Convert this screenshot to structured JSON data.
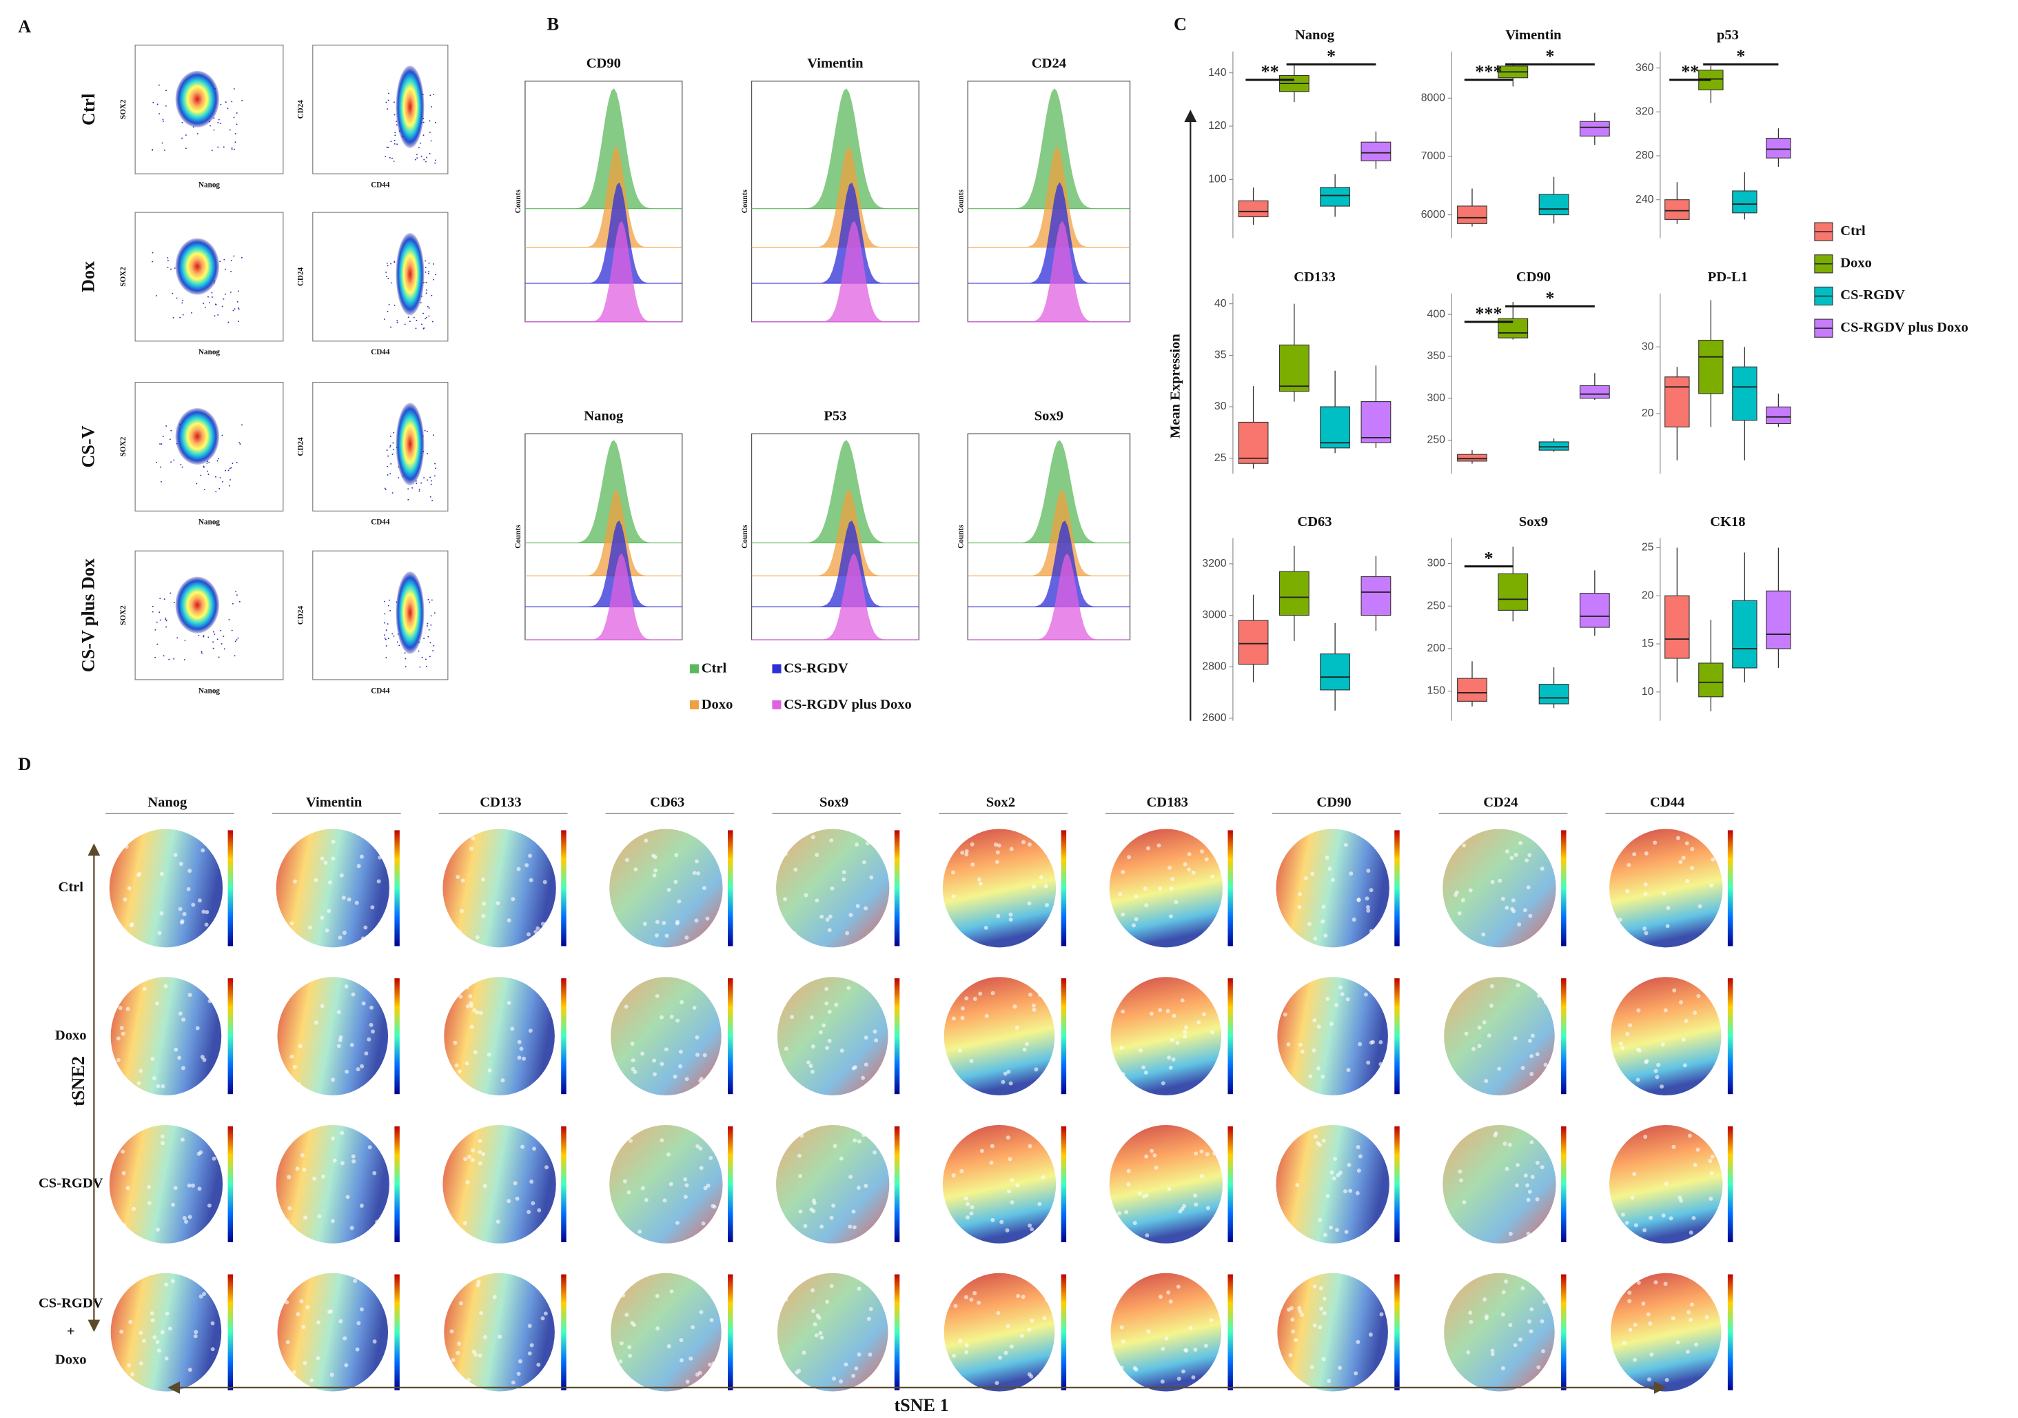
{
  "panel_a": {
    "label": "A",
    "rows": [
      "Ctrl",
      "Dox",
      "CS-V",
      "CS-V plus Dox"
    ],
    "plots": [
      {
        "x_label": "Nanog",
        "y_label": "SOX2"
      },
      {
        "x_label": "CD44",
        "y_label": "CD24"
      }
    ]
  },
  "panel_b": {
    "label": "B",
    "markers": [
      "CD90",
      "Vimentin",
      "CD24",
      "Nanog",
      "P53",
      "Sox9"
    ],
    "y_label": "Counts",
    "legend": [
      {
        "name": "Ctrl",
        "color": "#5cb85c"
      },
      {
        "name": "Doxo",
        "color": "#f0a040"
      },
      {
        "name": "CS-RGDV",
        "color": "#2f2fd8"
      },
      {
        "name": "CS-RGDV  plus Doxo",
        "color": "#e060e0"
      }
    ]
  },
  "panel_c": {
    "label": "C",
    "y_label": "Mean Expression",
    "legend": [
      {
        "name": "Ctrl",
        "color": "#f8766d"
      },
      {
        "name": "Doxo",
        "color": "#7cae00"
      },
      {
        "name": "CS-RGDV",
        "color": "#00bfc4"
      },
      {
        "name": "CS-RGDV  plus Doxo",
        "color": "#c77cff"
      }
    ]
  },
  "chart_data": [
    {
      "type": "box",
      "title": "Nanog",
      "ylim": [
        78,
        148
      ],
      "yticks": [
        100,
        120,
        140
      ],
      "boxes": [
        [
          83,
          86,
          88,
          92,
          97
        ],
        [
          129,
          133,
          136,
          139,
          143
        ],
        [
          86,
          90,
          94,
          97,
          102
        ],
        [
          104,
          107,
          110,
          114,
          118
        ]
      ],
      "annotations": [
        {
          "text": "**",
          "between": [
            "Ctrl",
            "Doxo"
          ]
        },
        {
          "text": "*",
          "between": [
            "Doxo",
            "CS-RGDV  plus Doxo"
          ]
        }
      ]
    },
    {
      "type": "box",
      "title": "Vimentin",
      "ylim": [
        5600,
        8800
      ],
      "yticks": [
        6000,
        7000,
        8000
      ],
      "boxes": [
        [
          5800,
          5850,
          5950,
          6150,
          6450
        ],
        [
          8200,
          8350,
          8450,
          8550,
          8600
        ],
        [
          5850,
          6000,
          6100,
          6350,
          6650
        ],
        [
          7200,
          7350,
          7500,
          7600,
          7750
        ]
      ],
      "annotations": [
        {
          "text": "***",
          "between": [
            "Ctrl",
            "Doxo"
          ]
        },
        {
          "text": "*",
          "between": [
            "Doxo",
            "CS-RGDV  plus Doxo"
          ]
        }
      ]
    },
    {
      "type": "box",
      "title": "p53",
      "ylim": [
        205,
        375
      ],
      "yticks": [
        240,
        280,
        320,
        360
      ],
      "boxes": [
        [
          218,
          222,
          230,
          240,
          256
        ],
        [
          328,
          340,
          350,
          358,
          362
        ],
        [
          222,
          228,
          236,
          248,
          265
        ],
        [
          270,
          278,
          286,
          296,
          305
        ]
      ],
      "annotations": [
        {
          "text": "**",
          "between": [
            "Ctrl",
            "Doxo"
          ]
        },
        {
          "text": "*",
          "between": [
            "Doxo",
            "CS-RGDV  plus Doxo"
          ]
        }
      ]
    },
    {
      "type": "box",
      "title": "CD133",
      "ylim": [
        23.5,
        41
      ],
      "yticks": [
        25,
        30,
        35,
        40
      ],
      "boxes": [
        [
          24,
          24.5,
          25,
          28.5,
          32
        ],
        [
          30.5,
          31.5,
          32,
          36,
          40
        ],
        [
          25.5,
          26,
          26.5,
          30,
          33.5
        ],
        [
          26,
          26.5,
          27,
          30.5,
          34
        ]
      ],
      "annotations": []
    },
    {
      "type": "box",
      "title": "CD90",
      "ylim": [
        210,
        425
      ],
      "yticks": [
        250,
        300,
        350,
        400
      ],
      "boxes": [
        [
          222,
          225,
          228,
          233,
          238
        ],
        [
          370,
          372,
          378,
          395,
          415
        ],
        [
          236,
          238,
          242,
          248,
          252
        ],
        [
          298,
          300,
          305,
          315,
          330
        ]
      ],
      "annotations": [
        {
          "text": "***",
          "between": [
            "Ctrl",
            "Doxo"
          ]
        },
        {
          "text": "*",
          "between": [
            "Doxo",
            "CS-RGDV  plus Doxo"
          ]
        }
      ]
    },
    {
      "type": "box",
      "title": "PD-L1",
      "ylim": [
        11,
        38
      ],
      "yticks": [
        20,
        30
      ],
      "boxes": [
        [
          13,
          18,
          24,
          25.5,
          27
        ],
        [
          18,
          23,
          28.5,
          31,
          37
        ],
        [
          13,
          19,
          24,
          27,
          30
        ],
        [
          18,
          18.5,
          19.5,
          21,
          23
        ]
      ],
      "annotations": []
    },
    {
      "type": "box",
      "title": "CD63",
      "ylim": [
        2590,
        3300
      ],
      "yticks": [
        2600,
        2800,
        3000,
        3200
      ],
      "boxes": [
        [
          2740,
          2810,
          2890,
          2980,
          3080
        ],
        [
          2900,
          3000,
          3070,
          3170,
          3270
        ],
        [
          2630,
          2710,
          2760,
          2850,
          2970
        ],
        [
          2940,
          3000,
          3090,
          3150,
          3230
        ]
      ],
      "annotations": []
    },
    {
      "type": "box",
      "title": "Sox9",
      "ylim": [
        115,
        330
      ],
      "yticks": [
        150,
        200,
        250,
        300
      ],
      "boxes": [
        [
          132,
          138,
          148,
          165,
          185
        ],
        [
          232,
          245,
          258,
          288,
          320
        ],
        [
          130,
          135,
          142,
          158,
          178
        ],
        [
          215,
          225,
          238,
          265,
          292
        ]
      ],
      "annotations": [
        {
          "text": "*",
          "between": [
            "Ctrl",
            "Doxo"
          ]
        }
      ]
    },
    {
      "type": "box",
      "title": "CK18",
      "ylim": [
        7,
        26
      ],
      "yticks": [
        10,
        15,
        20,
        25
      ],
      "boxes": [
        [
          11,
          13.5,
          15.5,
          20,
          25
        ],
        [
          8,
          9.5,
          11,
          13,
          17.5
        ],
        [
          11,
          12.5,
          14.5,
          19.5,
          24.5
        ],
        [
          12.5,
          14.5,
          16,
          20.5,
          25
        ]
      ],
      "annotations": []
    }
  ],
  "panel_d": {
    "label": "D",
    "markers": [
      "Nanog",
      "Vimentin",
      "CD133",
      "CD63",
      "Sox9",
      "Sox2",
      "CD183",
      "CD90",
      "CD24",
      "CD44"
    ],
    "rows": [
      [
        "Ctrl"
      ],
      [
        "Doxo"
      ],
      [
        "CS-RGDV"
      ],
      [
        "CS-RGDV",
        "+",
        "Doxo"
      ]
    ],
    "y_label": "tSNE2",
    "x_label": "tSNE 1"
  }
}
